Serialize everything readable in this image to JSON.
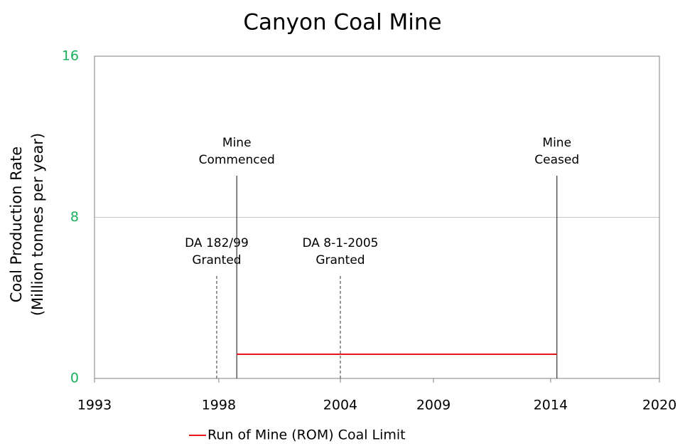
{
  "chart_data": {
    "type": "line",
    "title": "Canyon Coal Mine",
    "ylabel": [
      "Coal Production Rate",
      "(Million tonnes per year)"
    ],
    "ylabel_color": "#1aaf5d",
    "xlim": [
      1993,
      2020
    ],
    "xticks": [
      1993,
      {
        "value": 1998.94,
        "label": "1998"
      },
      {
        "value": 2004.75,
        "label": "2004"
      },
      {
        "value": 2009.2,
        "label": "2009"
      },
      {
        "value": 2014.8,
        "label": "2014"
      },
      2020
    ],
    "ylim": [
      0,
      16
    ],
    "yticks": [
      0,
      8,
      16
    ],
    "grid": true,
    "legend": "bottom",
    "series": [
      {
        "name": "Run of Mine (ROM) Coal Limit",
        "color": "#e8151b",
        "x": [
          1999.8,
          2015.1
        ],
        "values": [
          1.2,
          1.2
        ]
      }
    ],
    "markers": [
      {
        "label": [
          "DA 182/99",
          "Granted"
        ],
        "x": 1998.84,
        "dashed": true
      },
      {
        "label": [
          "Mine",
          "Commenced"
        ],
        "x": 1999.8,
        "dashed": false
      },
      {
        "label": [
          "DA 8-1-2005",
          "Granted"
        ],
        "x": 2004.75,
        "dashed": true
      },
      {
        "label": [
          "Mine",
          "Ceased"
        ],
        "x": 2015.1,
        "dashed": false
      }
    ]
  }
}
